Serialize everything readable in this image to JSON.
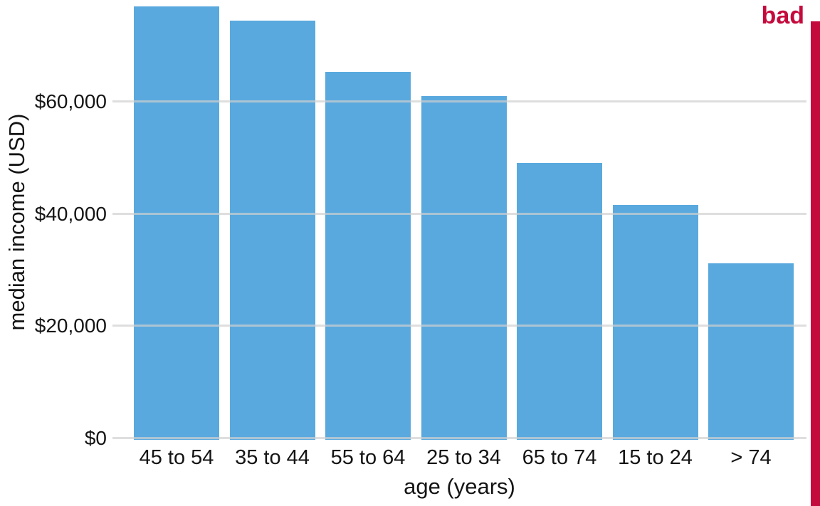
{
  "stamp": {
    "label": "bad",
    "color": "#C40A3C"
  },
  "chart_data": {
    "type": "bar",
    "title": "",
    "xlabel": "age (years)",
    "ylabel": "median income (USD)",
    "categories": [
      "45 to 54",
      "35 to 44",
      "55 to 64",
      "25 to 34",
      "65 to 74",
      "15 to 24",
      "> 74"
    ],
    "values": [
      77000,
      74500,
      65400,
      61000,
      49100,
      41600,
      31200
    ],
    "yticks": [
      0,
      20000,
      40000,
      60000
    ],
    "ytick_labels": [
      "$0",
      "$20,000",
      "$40,000",
      "$60,000"
    ],
    "ylim": [
      0,
      78100
    ],
    "grid": "horizontal",
    "legend": "none",
    "bar_color": "#59A9DE",
    "gridline_color": "#D0D0D0",
    "text_color": "#141414"
  }
}
